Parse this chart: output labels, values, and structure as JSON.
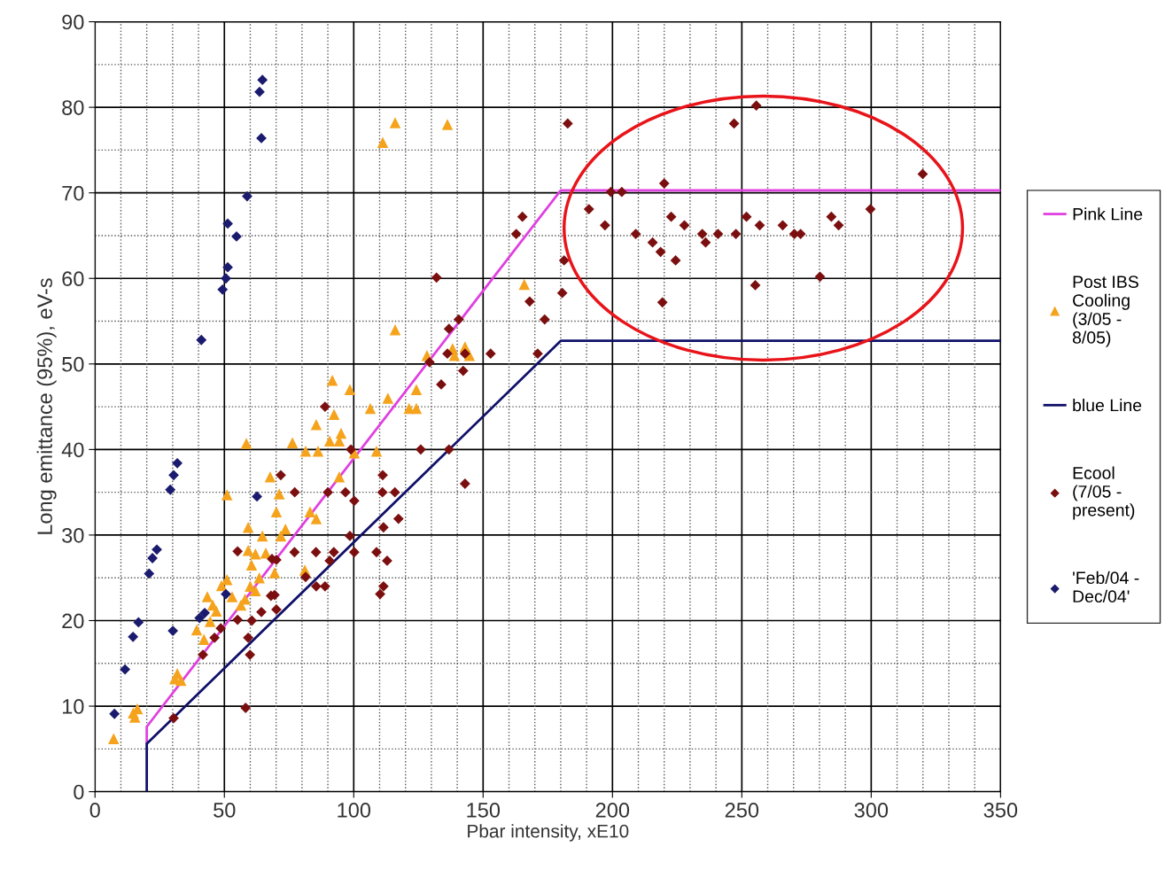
{
  "chart_data": {
    "type": "scatter",
    "xlabel": "Pbar intensity, xE10",
    "ylabel": "Long emittance (95%), eV-s",
    "xlim": [
      0,
      350
    ],
    "xticks": [
      0,
      50,
      100,
      150,
      200,
      250,
      300,
      350
    ],
    "ylim": [
      0,
      90
    ],
    "yticks": [
      0,
      10,
      20,
      30,
      40,
      50,
      60,
      70,
      80,
      90
    ],
    "grid": true,
    "legend": "right",
    "series": [
      {
        "name": "Pink Line",
        "type": "line",
        "color": "#e040e0",
        "marker": "none",
        "line_style": "solid",
        "x": [
          20,
          20,
          180,
          350
        ],
        "values": [
          5.7,
          7.6,
          70.3,
          70.3
        ]
      },
      {
        "name": "Post IBS\nCooling\n(3/05 -\n8/05)",
        "color": "#f5a31c",
        "marker": "triangle",
        "x": [
          7.2,
          15.4,
          16.4,
          14.8,
          30.8,
          31.8,
          33.2,
          39.3,
          42.1,
          44.5,
          43.4,
          45.5,
          46.9,
          48.9,
          51.0,
          53.0,
          56.4,
          51.0,
          58.5,
          59.2,
          59.2,
          64.7,
          60.5,
          62.0,
          63.5,
          66.0,
          60.0,
          62.0,
          67.7,
          69.4,
          70.1,
          71.2,
          71.8,
          73.6,
          76.3,
          81.1,
          81.4,
          83.1,
          85.5,
          85.5,
          86.2,
          90.7,
          91.7,
          92.4,
          94.4,
          94.4,
          95.1,
          98.5,
          100.2,
          106.4,
          108.8,
          113.2,
          116.0,
          121.4,
          124.2,
          124.2,
          128.3,
          138.2,
          138.9,
          143.0,
          144.7,
          165.9,
          111.2,
          116.0,
          136.2,
          58.0
        ],
        "values": [
          6.2,
          8.7,
          9.7,
          9.2,
          13.2,
          13.8,
          13.0,
          18.9,
          17.8,
          19.9,
          22.8,
          21.8,
          21.1,
          24.1,
          24.8,
          22.8,
          21.8,
          34.7,
          40.7,
          30.9,
          28.2,
          29.9,
          26.5,
          27.8,
          25.0,
          27.9,
          24.0,
          23.5,
          36.8,
          25.6,
          32.7,
          34.8,
          29.9,
          30.7,
          40.8,
          25.9,
          39.8,
          32.7,
          31.9,
          42.9,
          39.8,
          41.0,
          48.1,
          44.1,
          36.8,
          41.0,
          41.9,
          47.0,
          39.6,
          44.8,
          39.8,
          46.0,
          54.0,
          44.8,
          44.8,
          47.0,
          51.0,
          51.8,
          51.0,
          52.0,
          51.0,
          59.3,
          75.9,
          78.2,
          78.0,
          22.5
        ]
      },
      {
        "name": "blue Line",
        "type": "line",
        "color": "#10106a",
        "marker": "none",
        "line_style": "solid",
        "x": [
          20,
          20,
          180,
          350
        ],
        "values": [
          0,
          5.6,
          52.7,
          52.7
        ]
      },
      {
        "name": "Ecool\n(7/05 -\npresent)",
        "color": "#7b0f0f",
        "marker": "diamond",
        "x": [
          55.1,
          64.3,
          60.6,
          48.6,
          46.2,
          41.7,
          59.2,
          59.9,
          58.2,
          30.4,
          68.4,
          68.0,
          55.1,
          132.0,
          140.6,
          136.8,
          136.2,
          143.0,
          152.9,
          171.1,
          129.3,
          142.3,
          133.8,
          168.0,
          173.8,
          180.6,
          88.9,
          98.9,
          125.9,
          136.8,
          143.0,
          71.8,
          111.2,
          77.2,
          90.0,
          96.8,
          111.1,
          115.9,
          100.2,
          117.3,
          111.5,
          98.5,
          77.1,
          85.4,
          92.3,
          100.2,
          108.8,
          90.7,
          112.9,
          70.1,
          81.4,
          85.5,
          88.9,
          111.5,
          110.2,
          69.4,
          70.1,
          182.7,
          190.9,
          197.1,
          199.4,
          203.6,
          209.0,
          215.5,
          218.6,
          220.0,
          224.4,
          219.3,
          222.7,
          227.8,
          234.7,
          236.0,
          240.8,
          247.7,
          247.0,
          255.6,
          251.8,
          256.9,
          255.2,
          265.8,
          270.3,
          272.7,
          280.2,
          284.6,
          287.4,
          299.7,
          319.9,
          181.3,
          165.2,
          162.8
        ],
        "values": [
          28.1,
          21.0,
          20.0,
          19.1,
          18.0,
          16.0,
          18.0,
          16.0,
          9.8,
          8.6,
          27.2,
          22.9,
          20.1,
          60.1,
          55.2,
          54.1,
          51.2,
          51.2,
          51.2,
          51.2,
          50.2,
          49.2,
          47.6,
          57.3,
          55.2,
          58.3,
          45.0,
          40.0,
          40.0,
          40.0,
          36.0,
          37.0,
          37.0,
          35.0,
          35.0,
          35.0,
          35.0,
          35.0,
          34.0,
          31.9,
          30.9,
          29.9,
          28.0,
          28.0,
          28.0,
          28.0,
          28.0,
          27.0,
          27.0,
          27.1,
          25.1,
          24.0,
          24.0,
          24.0,
          23.1,
          23.0,
          21.3,
          78.1,
          68.1,
          66.2,
          70.1,
          70.1,
          65.2,
          64.2,
          63.1,
          71.1,
          62.1,
          57.2,
          67.2,
          66.2,
          65.2,
          64.2,
          65.2,
          65.2,
          78.1,
          80.2,
          67.2,
          66.2,
          59.2,
          66.2,
          65.2,
          65.2,
          60.2,
          67.2,
          66.2,
          68.1,
          72.2,
          62.1,
          67.2,
          65.2
        ]
      },
      {
        "name": "'Feb/04 -\nDec/04'",
        "color": "#1a1a6e",
        "marker": "diamond",
        "x": [
          7.5,
          11.6,
          14.7,
          16.8,
          20.9,
          22.2,
          23.9,
          29.1,
          30.4,
          31.8,
          30.1,
          40.4,
          42.4,
          50.6,
          62.6,
          41.1,
          49.3,
          50.6,
          51.3,
          51.3,
          54.7,
          58.8,
          64.3,
          63.6,
          64.7
        ],
        "values": [
          9.1,
          14.3,
          18.1,
          19.8,
          25.5,
          27.3,
          28.3,
          35.3,
          37.0,
          38.4,
          18.8,
          20.3,
          20.9,
          23.1,
          34.5,
          52.8,
          58.7,
          60.0,
          61.3,
          66.4,
          64.9,
          69.6,
          76.4,
          81.8,
          83.2
        ]
      }
    ]
  }
}
